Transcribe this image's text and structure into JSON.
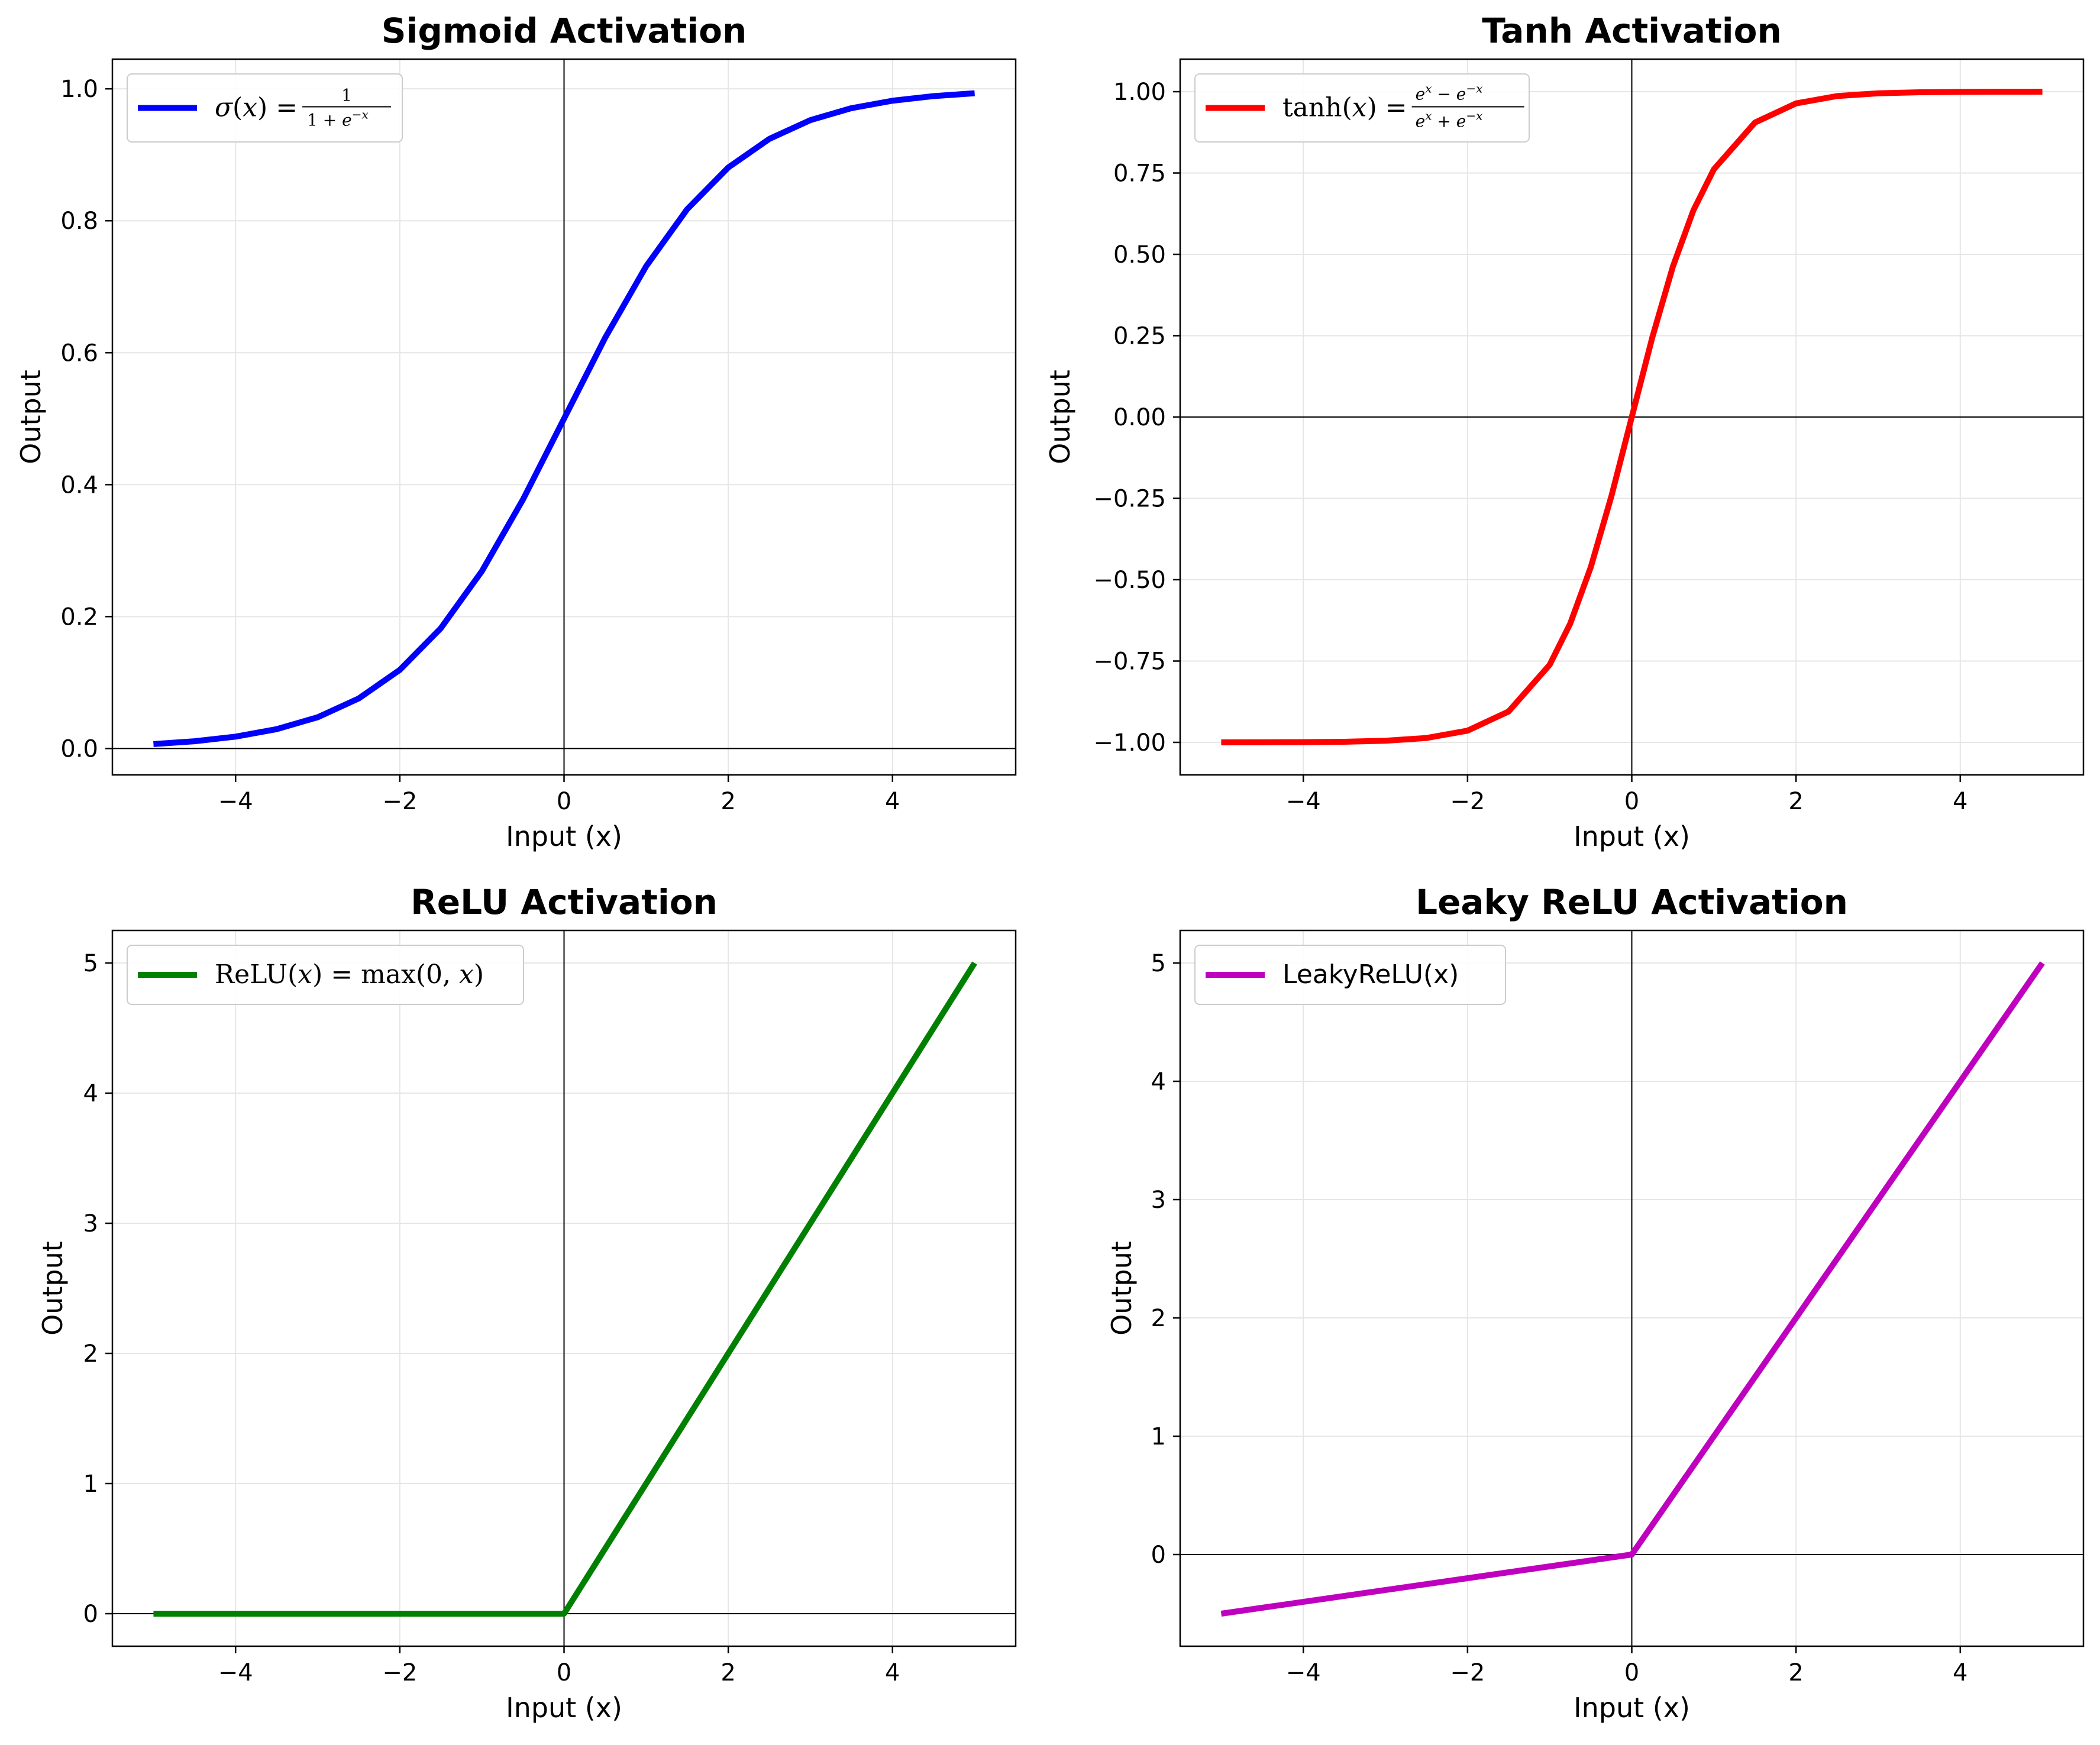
{
  "colors": {
    "sigmoid": "#0000ff",
    "tanh": "#ff0000",
    "relu": "#008000",
    "leaky_relu": "#bf00bf",
    "grid": "#e6e6e6",
    "axes": "#000000",
    "background": "#ffffff"
  },
  "chart_data": [
    {
      "id": "sigmoid",
      "type": "line",
      "title": "Sigmoid Activation",
      "xlabel": "Input (x)",
      "ylabel": "Output",
      "xlim": [
        -5.5,
        5.5
      ],
      "ylim": [
        -0.04,
        1.045
      ],
      "xticks": [
        -4,
        -2,
        0,
        2,
        4
      ],
      "xtick_labels": [
        "−4",
        "−2",
        "0",
        "2",
        "4"
      ],
      "yticks": [
        0.0,
        0.2,
        0.4,
        0.6,
        0.8,
        1.0
      ],
      "ytick_labels": [
        "0.0",
        "0.2",
        "0.4",
        "0.6",
        "0.8",
        "1.0"
      ],
      "grid": true,
      "legend_position": "upper-left",
      "reference_lines": {
        "x0": true,
        "y0": true
      },
      "series": [
        {
          "name": "σ(x) = 1/(1+e^{−x})",
          "color_key": "sigmoid",
          "x": [
            -5,
            -4.5,
            -4,
            -3.5,
            -3,
            -2.5,
            -2,
            -1.5,
            -1,
            -0.5,
            0,
            0.5,
            1,
            1.5,
            2,
            2.5,
            3,
            3.5,
            4,
            4.5,
            5
          ],
          "y": [
            0.0067,
            0.011,
            0.018,
            0.0293,
            0.0474,
            0.0759,
            0.1192,
            0.1824,
            0.2689,
            0.3775,
            0.5,
            0.6225,
            0.7311,
            0.8176,
            0.8808,
            0.9241,
            0.9526,
            0.9707,
            0.982,
            0.989,
            0.9933
          ]
        }
      ]
    },
    {
      "id": "tanh",
      "type": "line",
      "title": "Tanh Activation",
      "xlabel": "Input (x)",
      "ylabel": "Output",
      "xlim": [
        -5.5,
        5.5
      ],
      "ylim": [
        -1.1,
        1.1
      ],
      "xticks": [
        -4,
        -2,
        0,
        2,
        4
      ],
      "xtick_labels": [
        "−4",
        "−2",
        "0",
        "2",
        "4"
      ],
      "yticks": [
        -1.0,
        -0.75,
        -0.5,
        -0.25,
        0.0,
        0.25,
        0.5,
        0.75,
        1.0
      ],
      "ytick_labels": [
        "−1.00",
        "−0.75",
        "−0.50",
        "−0.25",
        "0.00",
        "0.25",
        "0.50",
        "0.75",
        "1.00"
      ],
      "grid": true,
      "legend_position": "upper-left",
      "reference_lines": {
        "x0": true,
        "y0": true
      },
      "series": [
        {
          "name": "tanh(x) = (e^x − e^{−x})/(e^x + e^{−x})",
          "color_key": "tanh",
          "x": [
            -5,
            -4.5,
            -4,
            -3.5,
            -3,
            -2.5,
            -2,
            -1.5,
            -1,
            -0.75,
            -0.5,
            -0.25,
            0,
            0.25,
            0.5,
            0.75,
            1,
            1.5,
            2,
            2.5,
            3,
            3.5,
            4,
            4.5,
            5
          ],
          "y": [
            -0.9999,
            -0.9998,
            -0.9993,
            -0.9982,
            -0.9951,
            -0.9866,
            -0.964,
            -0.9051,
            -0.7616,
            -0.6351,
            -0.4621,
            -0.2449,
            0,
            0.2449,
            0.4621,
            0.6351,
            0.7616,
            0.9051,
            0.964,
            0.9866,
            0.9951,
            0.9982,
            0.9993,
            0.9998,
            0.9999
          ]
        }
      ]
    },
    {
      "id": "relu",
      "type": "line",
      "title": "ReLU Activation",
      "xlabel": "Input (x)",
      "ylabel": "Output",
      "xlim": [
        -5.5,
        5.5
      ],
      "ylim": [
        -0.25,
        5.25
      ],
      "xticks": [
        -4,
        -2,
        0,
        2,
        4
      ],
      "xtick_labels": [
        "−4",
        "−2",
        "0",
        "2",
        "4"
      ],
      "yticks": [
        0,
        1,
        2,
        3,
        4,
        5
      ],
      "ytick_labels": [
        "0",
        "1",
        "2",
        "3",
        "4",
        "5"
      ],
      "grid": true,
      "legend_position": "upper-left",
      "reference_lines": {
        "x0": true,
        "y0": true
      },
      "series": [
        {
          "name": "ReLU(x) = max(0, x)",
          "color_key": "relu",
          "x": [
            -5,
            0,
            5
          ],
          "y": [
            0,
            0,
            5
          ]
        }
      ]
    },
    {
      "id": "leaky_relu",
      "type": "line",
      "title": "Leaky ReLU Activation",
      "xlabel": "Input (x)",
      "ylabel": "Output",
      "xlim": [
        -5.5,
        5.5
      ],
      "ylim": [
        -0.775,
        5.275
      ],
      "xticks": [
        -4,
        -2,
        0,
        2,
        4
      ],
      "xtick_labels": [
        "−4",
        "−2",
        "0",
        "2",
        "4"
      ],
      "yticks": [
        0,
        1,
        2,
        3,
        4,
        5
      ],
      "ytick_labels": [
        "0",
        "1",
        "2",
        "3",
        "4",
        "5"
      ],
      "grid": true,
      "legend_position": "upper-left",
      "reference_lines": {
        "x0": true,
        "y0": true
      },
      "series": [
        {
          "name": "LeakyReLU(x)",
          "color_key": "leaky_relu",
          "x": [
            -5,
            0,
            5
          ],
          "y": [
            -0.5,
            0,
            5
          ]
        }
      ]
    }
  ]
}
